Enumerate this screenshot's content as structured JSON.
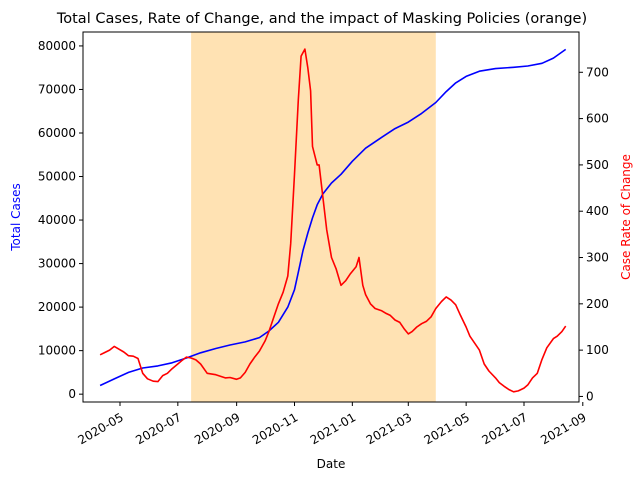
{
  "chart_data": {
    "type": "line",
    "title": "Total Cases, Rate of Change, and the impact of Masking Policies (orange)",
    "xlabel": "Date",
    "ylabel_left": "Total Cases",
    "ylabel_right": "Case Rate of Change",
    "x_ticks": [
      "2020-05",
      "2020-07",
      "2020-09",
      "2020-11",
      "2021-01",
      "2021-03",
      "2021-05",
      "2021-07",
      "2021-09"
    ],
    "y_left_ticks": [
      "0",
      "10000",
      "20000",
      "30000",
      "40000",
      "50000",
      "60000",
      "70000",
      "80000"
    ],
    "y_right_ticks": [
      "0",
      "100",
      "200",
      "300",
      "400",
      "500",
      "600",
      "700"
    ],
    "x_range": [
      "2020-03-23",
      "2021-08-28"
    ],
    "y_left_range": [
      -1800,
      83200
    ],
    "y_right_range": [
      -12,
      787
    ],
    "grid": false,
    "colors": {
      "total_cases": "#0000ff",
      "rate_of_change": "#ff0000",
      "masking": "#ffe2b3",
      "left_label": "#0000ff",
      "right_label": "#ff0000"
    },
    "masking_period": {
      "start": "2020-07-15",
      "end": "2021-03-30"
    },
    "series": [
      {
        "axis": "left",
        "points": [
          [
            "2020-04-10",
            2000
          ],
          [
            "2020-04-25",
            3500
          ],
          [
            "2020-05-10",
            5000
          ],
          [
            "2020-05-25",
            6000
          ],
          [
            "2020-06-10",
            6500
          ],
          [
            "2020-06-25",
            7200
          ],
          [
            "2020-07-10",
            8300
          ],
          [
            "2020-07-25",
            9500
          ],
          [
            "2020-08-10",
            10500
          ],
          [
            "2020-08-25",
            11300
          ],
          [
            "2020-09-10",
            12000
          ],
          [
            "2020-09-25",
            13000
          ],
          [
            "2020-10-05",
            14500
          ],
          [
            "2020-10-15",
            16500
          ],
          [
            "2020-10-25",
            20000
          ],
          [
            "2020-11-01",
            24000
          ],
          [
            "2020-11-05",
            28000
          ],
          [
            "2020-11-10",
            33000
          ],
          [
            "2020-11-15",
            37000
          ],
          [
            "2020-11-20",
            40500
          ],
          [
            "2020-11-25",
            43500
          ],
          [
            "2020-12-01",
            46000
          ],
          [
            "2020-12-10",
            48500
          ],
          [
            "2020-12-20",
            50500
          ],
          [
            "2021-01-01",
            53500
          ],
          [
            "2021-01-15",
            56500
          ],
          [
            "2021-02-01",
            59000
          ],
          [
            "2021-02-15",
            61000
          ],
          [
            "2021-03-01",
            62500
          ],
          [
            "2021-03-15",
            64500
          ],
          [
            "2021-03-30",
            67000
          ],
          [
            "2021-04-10",
            69500
          ],
          [
            "2021-04-20",
            71500
          ],
          [
            "2021-05-01",
            73000
          ],
          [
            "2021-05-15",
            74200
          ],
          [
            "2021-06-01",
            74800
          ],
          [
            "2021-06-20",
            75100
          ],
          [
            "2021-07-05",
            75400
          ],
          [
            "2021-07-20",
            76000
          ],
          [
            "2021-08-01",
            77200
          ],
          [
            "2021-08-14",
            79200
          ]
        ]
      },
      {
        "axis": "right",
        "points": [
          [
            "2020-04-10",
            90
          ],
          [
            "2020-04-15",
            95
          ],
          [
            "2020-04-20",
            100
          ],
          [
            "2020-04-25",
            108
          ],
          [
            "2020-04-30",
            102
          ],
          [
            "2020-05-05",
            96
          ],
          [
            "2020-05-10",
            88
          ],
          [
            "2020-05-15",
            87
          ],
          [
            "2020-05-20",
            82
          ],
          [
            "2020-05-25",
            50
          ],
          [
            "2020-05-30",
            38
          ],
          [
            "2020-06-05",
            33
          ],
          [
            "2020-06-10",
            32
          ],
          [
            "2020-06-15",
            45
          ],
          [
            "2020-06-20",
            50
          ],
          [
            "2020-06-25",
            60
          ],
          [
            "2020-07-01",
            70
          ],
          [
            "2020-07-05",
            77
          ],
          [
            "2020-07-10",
            85
          ],
          [
            "2020-07-15",
            83
          ],
          [
            "2020-07-20",
            79
          ],
          [
            "2020-07-25",
            70
          ],
          [
            "2020-08-01",
            50
          ],
          [
            "2020-08-10",
            47
          ],
          [
            "2020-08-20",
            40
          ],
          [
            "2020-08-25",
            41
          ],
          [
            "2020-09-01",
            37
          ],
          [
            "2020-09-05",
            40
          ],
          [
            "2020-09-10",
            52
          ],
          [
            "2020-09-15",
            70
          ],
          [
            "2020-09-20",
            85
          ],
          [
            "2020-09-25",
            98
          ],
          [
            "2020-10-01",
            120
          ],
          [
            "2020-10-05",
            140
          ],
          [
            "2020-10-10",
            170
          ],
          [
            "2020-10-15",
            200
          ],
          [
            "2020-10-20",
            225
          ],
          [
            "2020-10-25",
            260
          ],
          [
            "2020-10-28",
            330
          ],
          [
            "2020-11-01",
            480
          ],
          [
            "2020-11-05",
            640
          ],
          [
            "2020-11-08",
            735
          ],
          [
            "2020-11-12",
            750
          ],
          [
            "2020-11-15",
            710
          ],
          [
            "2020-11-18",
            660
          ],
          [
            "2020-11-20",
            540
          ],
          [
            "2020-11-25",
            500
          ],
          [
            "2020-11-27",
            500
          ],
          [
            "2020-12-01",
            430
          ],
          [
            "2020-12-05",
            360
          ],
          [
            "2020-12-10",
            300
          ],
          [
            "2020-12-15",
            275
          ],
          [
            "2020-12-20",
            240
          ],
          [
            "2020-12-25",
            250
          ],
          [
            "2020-12-30",
            265
          ],
          [
            "2021-01-05",
            280
          ],
          [
            "2021-01-08",
            300
          ],
          [
            "2021-01-12",
            240
          ],
          [
            "2021-01-15",
            220
          ],
          [
            "2021-01-20",
            200
          ],
          [
            "2021-01-25",
            190
          ],
          [
            "2021-02-01",
            185
          ],
          [
            "2021-02-05",
            180
          ],
          [
            "2021-02-10",
            175
          ],
          [
            "2021-02-15",
            165
          ],
          [
            "2021-02-20",
            160
          ],
          [
            "2021-02-25",
            145
          ],
          [
            "2021-03-01",
            135
          ],
          [
            "2021-03-05",
            140
          ],
          [
            "2021-03-10",
            150
          ],
          [
            "2021-03-15",
            157
          ],
          [
            "2021-03-20",
            162
          ],
          [
            "2021-03-25",
            172
          ],
          [
            "2021-03-30",
            190
          ],
          [
            "2021-04-05",
            205
          ],
          [
            "2021-04-10",
            215
          ],
          [
            "2021-04-15",
            208
          ],
          [
            "2021-04-20",
            198
          ],
          [
            "2021-04-25",
            175
          ],
          [
            "2021-05-01",
            150
          ],
          [
            "2021-05-05",
            130
          ],
          [
            "2021-05-10",
            115
          ],
          [
            "2021-05-15",
            100
          ],
          [
            "2021-05-20",
            70
          ],
          [
            "2021-05-25",
            55
          ],
          [
            "2021-06-01",
            40
          ],
          [
            "2021-06-05",
            30
          ],
          [
            "2021-06-10",
            22
          ],
          [
            "2021-06-15",
            15
          ],
          [
            "2021-06-20",
            10
          ],
          [
            "2021-06-25",
            12
          ],
          [
            "2021-07-01",
            18
          ],
          [
            "2021-07-05",
            25
          ],
          [
            "2021-07-10",
            40
          ],
          [
            "2021-07-15",
            50
          ],
          [
            "2021-07-20",
            80
          ],
          [
            "2021-07-25",
            105
          ],
          [
            "2021-08-01",
            125
          ],
          [
            "2021-08-05",
            130
          ],
          [
            "2021-08-10",
            140
          ],
          [
            "2021-08-14",
            152
          ]
        ]
      }
    ]
  }
}
